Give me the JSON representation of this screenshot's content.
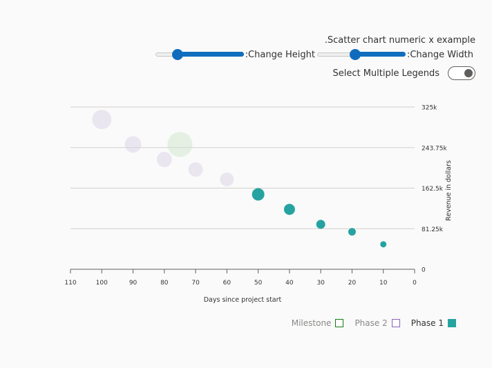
{
  "controls": {
    "title": ".Scatter chart numeric x example",
    "height_label": ":Change Height",
    "width_label": ":Change Width",
    "height_value": 0.78,
    "width_value": 0.58,
    "multi_legend_label": "Select Multiple Legends",
    "multi_legend_on": true
  },
  "colors": {
    "phase1": "#26a3a1",
    "phase2": "#d7cfe5",
    "milestone": "#c8e4c6",
    "phase2_border": "#8764b8",
    "milestone_border": "#107c10"
  },
  "chart_data": {
    "type": "scatter",
    "xlabel": "Days since project start",
    "ylabel": "Revenue in dollars",
    "xlim": [
      110,
      0
    ],
    "ylim": [
      0,
      325000
    ],
    "x_ticks": [
      "110",
      "100",
      "90",
      "80",
      "70",
      "60",
      "50",
      "40",
      "30",
      "20",
      "10",
      "0"
    ],
    "x_tick_values": [
      110,
      100,
      90,
      80,
      70,
      60,
      50,
      40,
      30,
      20,
      10,
      0
    ],
    "y_ticks": [
      "0",
      "81.25k",
      "162.5k",
      "243.75k",
      "325k"
    ],
    "y_tick_values": [
      0,
      81250,
      162500,
      243750,
      325000
    ],
    "x_reversed": true,
    "y_axis_side": "right",
    "grid": true,
    "legend_position": "bottom-right",
    "series": [
      {
        "name": "Phase 1",
        "color_key": "phase1",
        "faded": false,
        "points": [
          {
            "x": 50,
            "y": 150000,
            "r": 9
          },
          {
            "x": 40,
            "y": 120000,
            "r": 8
          },
          {
            "x": 30,
            "y": 90000,
            "r": 6.5
          },
          {
            "x": 20,
            "y": 75000,
            "r": 5.5
          },
          {
            "x": 10,
            "y": 50000,
            "r": 4.5
          }
        ]
      },
      {
        "name": "Phase 2",
        "color_key": "phase2",
        "faded": true,
        "points": [
          {
            "x": 100,
            "y": 300000,
            "r": 14
          },
          {
            "x": 90,
            "y": 250000,
            "r": 12
          },
          {
            "x": 80,
            "y": 220000,
            "r": 11
          },
          {
            "x": 70,
            "y": 200000,
            "r": 10.5
          },
          {
            "x": 60,
            "y": 180000,
            "r": 10
          }
        ]
      },
      {
        "name": "Milestone",
        "color_key": "milestone",
        "faded": true,
        "points": [
          {
            "x": 75,
            "y": 250000,
            "r": 18
          }
        ]
      }
    ]
  },
  "legend": [
    {
      "label": "Milestone",
      "color_key": "milestone",
      "border_key": "milestone_border",
      "filled": false,
      "active": false
    },
    {
      "label": "Phase 2",
      "color_key": "phase2",
      "border_key": "phase2_border",
      "filled": false,
      "active": false
    },
    {
      "label": "Phase 1",
      "color_key": "phase1",
      "border_key": "phase1",
      "filled": true,
      "active": true
    }
  ]
}
